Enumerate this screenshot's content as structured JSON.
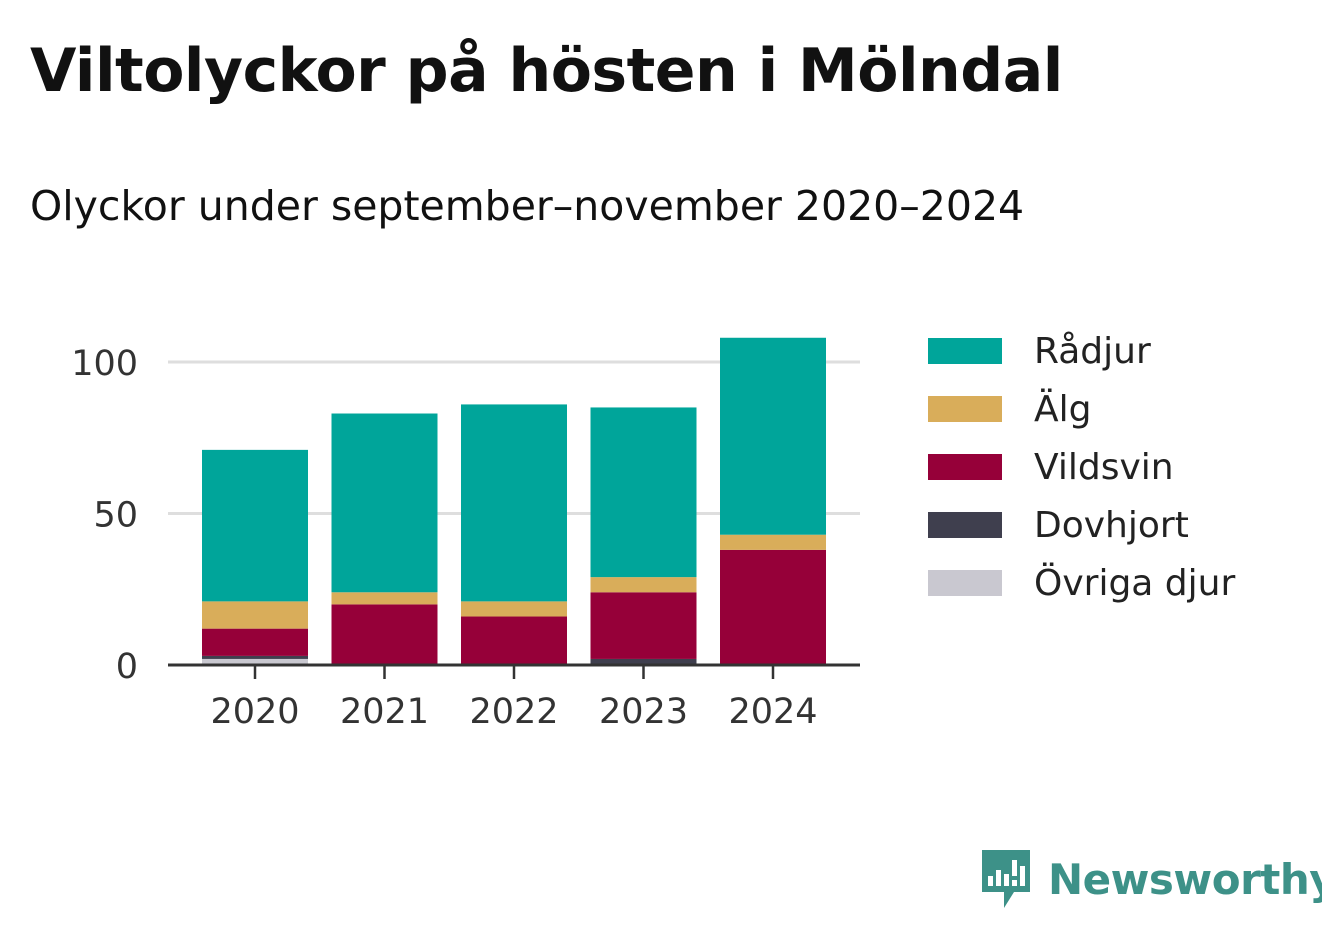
{
  "title": "Viltolyckor på hösten i Mölndal",
  "subtitle": "Olyckor under september–november 2020–2024",
  "brand": "Newsworthy",
  "brand_color": "#3d9188",
  "chart_data": {
    "type": "bar",
    "stacked": true,
    "categories": [
      "2020",
      "2021",
      "2022",
      "2023",
      "2024"
    ],
    "series": [
      {
        "name": "Övriga djur",
        "color": "#c9c8d0",
        "values": [
          2,
          0,
          0,
          0,
          0
        ]
      },
      {
        "name": "Dovhjort",
        "color": "#3f3f4e",
        "values": [
          1,
          0,
          0,
          2,
          0
        ]
      },
      {
        "name": "Vildsvin",
        "color": "#960039",
        "values": [
          9,
          20,
          16,
          22,
          38
        ]
      },
      {
        "name": "Älg",
        "color": "#d9ad5a",
        "values": [
          9,
          4,
          5,
          5,
          5
        ]
      },
      {
        "name": "Rådjur",
        "color": "#00a59a",
        "values": [
          50,
          59,
          65,
          56,
          65
        ]
      }
    ],
    "legend_order": [
      "Rådjur",
      "Älg",
      "Vildsvin",
      "Dovhjort",
      "Övriga djur"
    ],
    "yticks": [
      0,
      50,
      100
    ],
    "ylim": [
      0,
      110
    ],
    "grid": true,
    "legend_position": "right"
  }
}
